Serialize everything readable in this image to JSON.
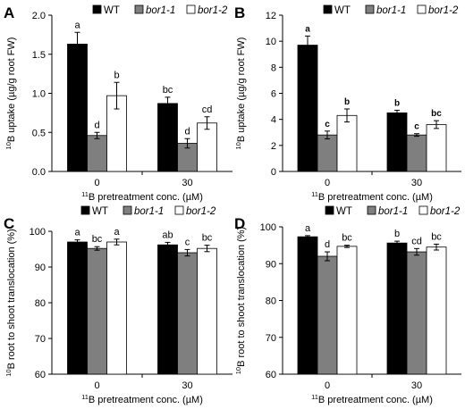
{
  "colors": {
    "WT": "#000000",
    "bor1-1": "#7f7f7f",
    "bor1-2": "#ffffff",
    "stroke": "#000000"
  },
  "chart_data": [
    {
      "panel": "A",
      "type": "bar",
      "ylabel_sup": "10",
      "ylabel_text": "B uptake (µg/g root FW)",
      "xlabel_sup": "11",
      "xlabel_text": "B pretreatment conc. (µM)",
      "categories": [
        "0",
        "30"
      ],
      "ylim": [
        0,
        2
      ],
      "yticks": [
        0,
        0.5,
        1,
        1.5,
        2
      ],
      "ytick_labels": [
        "0.0",
        "0.5",
        "1.0",
        "1.5",
        "2.0"
      ],
      "sig_bold": false,
      "series": [
        {
          "name": "WT",
          "key": "WT",
          "values": [
            1.63,
            0.87
          ],
          "errors": [
            0.15,
            0.08
          ],
          "letters": [
            "a",
            "bc"
          ]
        },
        {
          "name": "bor1-1",
          "key": "bor1-1",
          "values": [
            0.46,
            0.36
          ],
          "errors": [
            0.04,
            0.06
          ],
          "letters": [
            "d",
            "d"
          ]
        },
        {
          "name": "bor1-2",
          "key": "bor1-2",
          "values": [
            0.97,
            0.62
          ],
          "errors": [
            0.17,
            0.08
          ],
          "letters": [
            "b",
            "cd"
          ]
        }
      ]
    },
    {
      "panel": "B",
      "type": "bar",
      "ylabel_sup": "10",
      "ylabel_text": "B uptake (µg/g root FW)",
      "xlabel_sup": "11",
      "xlabel_text": "B pretreatment conc. (µM)",
      "categories": [
        "0",
        "30"
      ],
      "ylim": [
        0,
        12
      ],
      "yticks": [
        0,
        2,
        4,
        6,
        8,
        10,
        12
      ],
      "ytick_labels": [
        "0",
        "2",
        "4",
        "6",
        "8",
        "10",
        "12"
      ],
      "sig_bold": true,
      "series": [
        {
          "name": "WT",
          "key": "WT",
          "values": [
            9.7,
            4.5
          ],
          "errors": [
            0.7,
            0.2
          ],
          "letters": [
            "a",
            "b"
          ]
        },
        {
          "name": "bor1-1",
          "key": "bor1-1",
          "values": [
            2.8,
            2.8
          ],
          "errors": [
            0.3,
            0.1
          ],
          "letters": [
            "c",
            "c"
          ]
        },
        {
          "name": "bor1-2",
          "key": "bor1-2",
          "values": [
            4.3,
            3.6
          ],
          "errors": [
            0.5,
            0.3
          ],
          "letters": [
            "b",
            "bc"
          ]
        }
      ]
    },
    {
      "panel": "C",
      "type": "bar",
      "ylabel_sup": "10",
      "ylabel_text": "B root to shoot translocation (%)",
      "xlabel_sup": "11",
      "xlabel_text": "B pretreatment conc. (µM)",
      "categories": [
        "0",
        "30"
      ],
      "ylim": [
        60,
        100
      ],
      "yticks": [
        60,
        70,
        80,
        90,
        100
      ],
      "ytick_labels": [
        "60",
        "70",
        "80",
        "90",
        "100"
      ],
      "sig_bold": false,
      "series": [
        {
          "name": "WT",
          "key": "WT",
          "values": [
            97.0,
            96.2
          ],
          "errors": [
            0.6,
            0.7
          ],
          "letters": [
            "a",
            "ab"
          ]
        },
        {
          "name": "bor1-1",
          "key": "bor1-1",
          "values": [
            95.2,
            94.0
          ],
          "errors": [
            0.5,
            0.9
          ],
          "letters": [
            "bc",
            "c"
          ]
        },
        {
          "name": "bor1-2",
          "key": "bor1-2",
          "values": [
            97.0,
            95.2
          ],
          "errors": [
            0.8,
            0.9
          ],
          "letters": [
            "a",
            "bc"
          ]
        }
      ]
    },
    {
      "panel": "D",
      "type": "bar",
      "ylabel_sup": "10",
      "ylabel_text": "B root to shoot translocation (%)",
      "xlabel_sup": "11",
      "xlabel_text": "B pretreatment conc. (µM)",
      "categories": [
        "0",
        "30"
      ],
      "ylim": [
        60,
        100
      ],
      "yticks": [
        60,
        70,
        80,
        90,
        100
      ],
      "ytick_labels": [
        "60",
        "70",
        "80",
        "90",
        "100"
      ],
      "sig_bold": false,
      "series": [
        {
          "name": "WT",
          "key": "WT",
          "values": [
            97.3,
            95.6
          ],
          "errors": [
            0.3,
            0.5
          ],
          "letters": [
            "a",
            "b"
          ]
        },
        {
          "name": "bor1-1",
          "key": "bor1-1",
          "values": [
            92.0,
            93.2
          ],
          "errors": [
            1.2,
            0.9
          ],
          "letters": [
            "d",
            "cd"
          ]
        },
        {
          "name": "bor1-2",
          "key": "bor1-2",
          "values": [
            94.7,
            94.5
          ],
          "errors": [
            0.3,
            0.8
          ],
          "letters": [
            "bc",
            "bc"
          ]
        }
      ]
    }
  ]
}
